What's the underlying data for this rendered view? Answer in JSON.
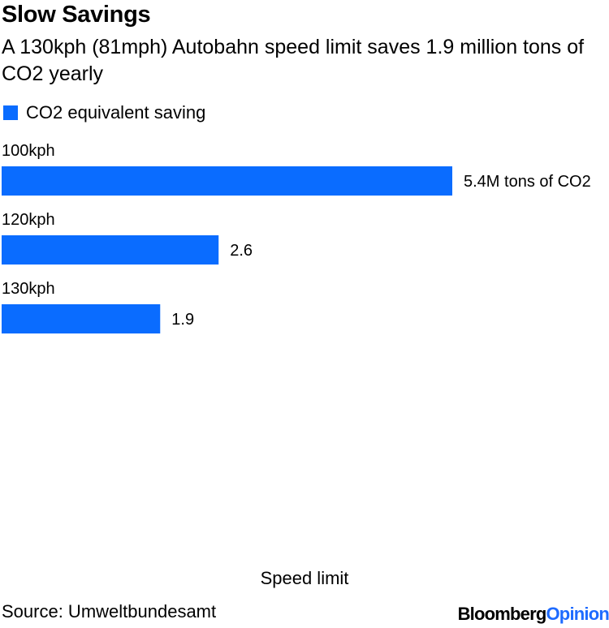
{
  "title": "Slow Savings",
  "subtitle": "A 130kph (81mph) Autobahn speed limit saves 1.9 million tons of CO2 yearly",
  "source": "Source: Umweltbundesamt",
  "brand": {
    "name": "Bloomberg",
    "accent": "Opinion"
  },
  "colors": {
    "bar": "#0a6cff",
    "brand_accent": "#1e6bff"
  },
  "chart_data": {
    "type": "bar",
    "orientation": "horizontal",
    "categories": [
      "100kph",
      "120kph",
      "130kph"
    ],
    "series": [
      {
        "name": "CO2 equivalent saving",
        "values": [
          5.4,
          2.6,
          1.9
        ],
        "value_labels": [
          "5.4M tons of CO2",
          "2.6",
          "1.9"
        ]
      }
    ],
    "xlabel": "Speed limit",
    "xlim": [
      0,
      7.2
    ],
    "grid": false,
    "legend": "top-left"
  }
}
